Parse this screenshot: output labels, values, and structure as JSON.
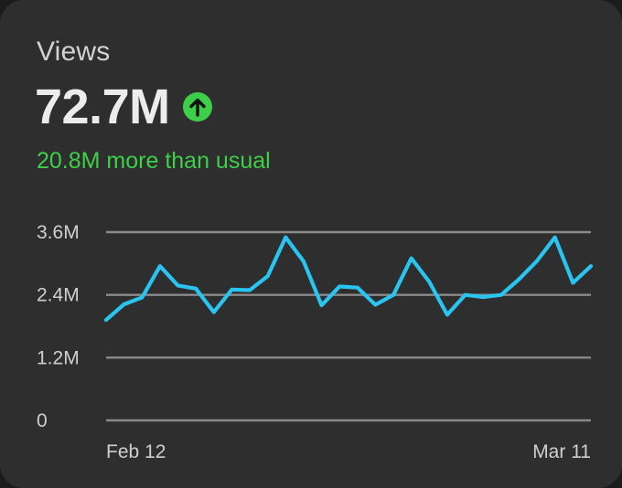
{
  "card": {
    "title": "Views",
    "metric": "72.7M",
    "trend_icon": "arrow-up-circle-icon",
    "comparison": "20.8M more than usual"
  },
  "colors": {
    "card_background": "#2e2e2e",
    "accent_green": "#3ecf4a",
    "line": "#29c4f0",
    "grid": "#8a8a8a",
    "text_primary": "#ececec",
    "text_secondary": "#cfcfcf"
  },
  "chart_data": {
    "type": "line",
    "ylim": [
      0,
      3.6
    ],
    "yticks": [
      {
        "value": 0,
        "label": "0"
      },
      {
        "value": 1.2,
        "label": "1.2M"
      },
      {
        "value": 2.4,
        "label": "2.4M"
      },
      {
        "value": 3.6,
        "label": "3.6M"
      }
    ],
    "xtick_labels": [
      "Feb 12",
      "Mar 11"
    ],
    "grid": true,
    "series": [
      {
        "values": [
          1.92,
          2.22,
          2.35,
          2.95,
          2.58,
          2.52,
          2.07,
          2.5,
          2.49,
          2.76,
          3.5,
          3.04,
          2.2,
          2.56,
          2.54,
          2.21,
          2.4,
          3.1,
          2.65,
          2.02,
          2.4,
          2.36,
          2.4,
          2.7,
          3.05,
          3.5,
          2.63,
          2.95
        ]
      }
    ]
  }
}
